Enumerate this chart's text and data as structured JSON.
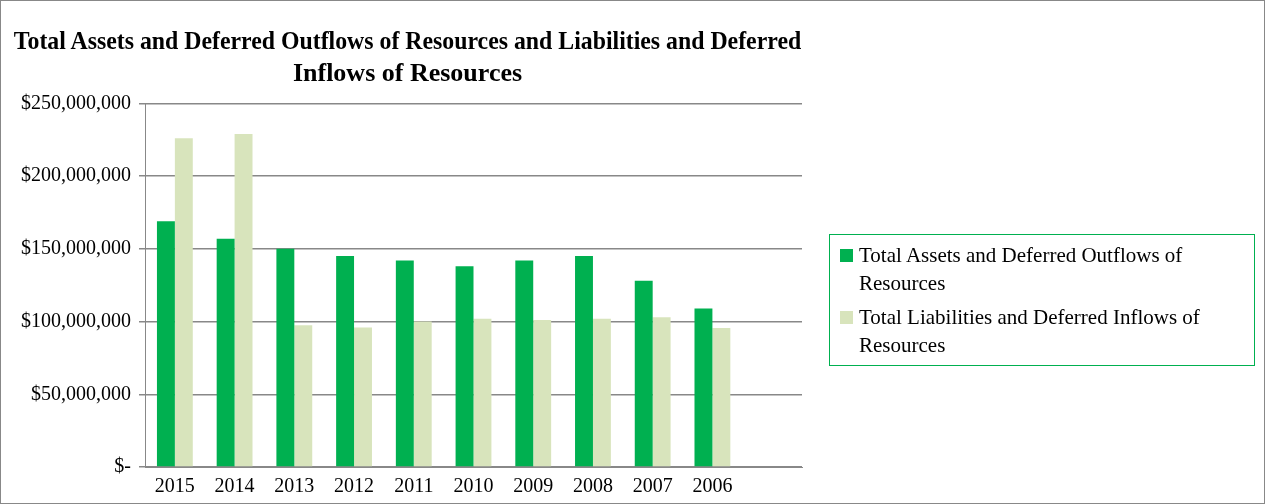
{
  "chart_data": {
    "type": "bar",
    "title": "Total Assets and Deferred Outflows of Resources and Liabilities and Deferred Inflows of Resources",
    "categories": [
      "2015",
      "2014",
      "2013",
      "2012",
      "2011",
      "2010",
      "2009",
      "2008",
      "2007",
      "2006",
      null
    ],
    "series": [
      {
        "name": "Total Assets and Deferred Outflows of Resources",
        "color": "#00b050",
        "values": [
          169000000,
          157000000,
          150000000,
          145000000,
          142000000,
          138000000,
          142000000,
          145000000,
          128000000,
          109000000,
          null
        ]
      },
      {
        "name": "Total Liabilities and Deferred Inflows of Resources",
        "color": "#d8e4bc",
        "values": [
          226000000,
          229000000,
          97500000,
          96000000,
          100000000,
          102000000,
          101000000,
          102000000,
          103000000,
          95500000,
          null
        ]
      }
    ],
    "ylim": [
      0,
      250000000
    ],
    "yticks": [
      {
        "value": 0,
        "label": "$-"
      },
      {
        "value": 50000000,
        "label": "$50,000,000"
      },
      {
        "value": 100000000,
        "label": "$100,000,000"
      },
      {
        "value": 150000000,
        "label": "$150,000,000"
      },
      {
        "value": 200000000,
        "label": "$200,000,000"
      },
      {
        "value": 250000000,
        "label": "$250,000,000"
      }
    ],
    "grid": "y",
    "legend": "right"
  }
}
